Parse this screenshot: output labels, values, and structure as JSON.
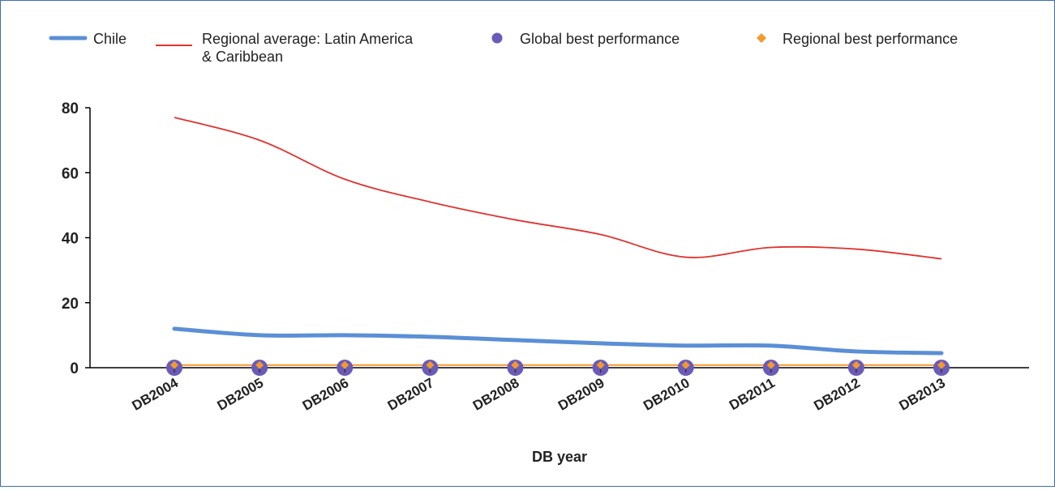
{
  "chart_data": {
    "type": "line",
    "categories": [
      "DB2004",
      "DB2005",
      "DB2006",
      "DB2007",
      "DB2008",
      "DB2009",
      "DB2010",
      "DB2011",
      "DB2012",
      "DB2013"
    ],
    "series": [
      {
        "name": "Chile",
        "marker": "line",
        "color": "#5b8fd6",
        "values": [
          12,
          10,
          10,
          9.5,
          8.5,
          7.5,
          6.8,
          6.8,
          5,
          4.5
        ]
      },
      {
        "name": "Regional average: Latin America & Caribbean",
        "name_lines": [
          "Regional average: Latin America",
          "& Caribbean"
        ],
        "marker": "line",
        "color": "#e0332e",
        "values": [
          77,
          70,
          58,
          51,
          45.5,
          41,
          34,
          37,
          36.5,
          33.5
        ]
      },
      {
        "name": "Global best performance",
        "marker": "circle",
        "color": "#6a5bb8",
        "values": [
          0,
          0,
          0,
          0,
          0,
          0,
          0,
          0,
          0,
          0
        ]
      },
      {
        "name": "Regional best performance",
        "marker": "diamond",
        "color": "#f39a2e",
        "values": [
          0.8,
          0.8,
          0.8,
          0.8,
          0.8,
          0.8,
          0.8,
          0.8,
          0.8,
          0.8
        ]
      }
    ],
    "y_ticks": [
      "0",
      "20",
      "40",
      "60",
      "80"
    ],
    "ylim": [
      0,
      80
    ],
    "xlabel": "DB year",
    "ylabel": "",
    "grid": false,
    "legend_position": "top"
  }
}
